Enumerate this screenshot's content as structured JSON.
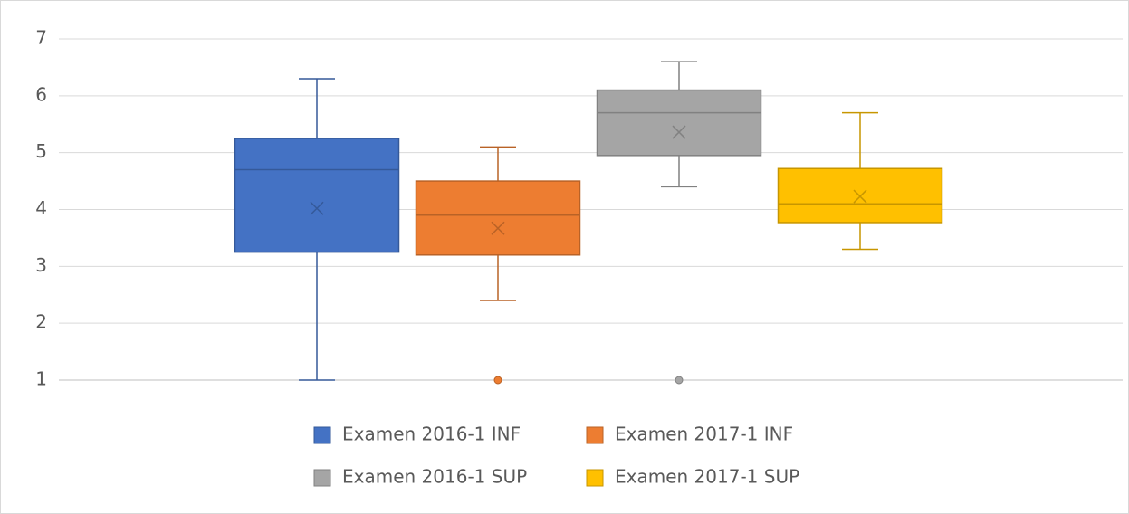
{
  "chart_data": {
    "type": "box",
    "ylim": [
      1,
      7
    ],
    "yticks": [
      1,
      2,
      3,
      4,
      5,
      6,
      7
    ],
    "grid": true,
    "series": [
      {
        "name": "Examen 2016-1 INF",
        "color": "#4472c4",
        "min": 1,
        "q1": 3.25,
        "median": 4.7,
        "q3": 5.25,
        "max": 6.3,
        "mean": 4.02,
        "outliers": []
      },
      {
        "name": "Examen 2017-1 INF",
        "color": "#ed7d31",
        "min": 2.4,
        "q1": 3.2,
        "median": 3.9,
        "q3": 4.5,
        "max": 5.1,
        "mean": 3.67,
        "outliers": [
          1
        ]
      },
      {
        "name": "Examen 2016-1 SUP",
        "color": "#a5a5a5",
        "min": 4.4,
        "q1": 4.95,
        "median": 5.7,
        "q3": 6.1,
        "max": 6.6,
        "mean": 5.36,
        "outliers": [
          1
        ]
      },
      {
        "name": "Examen 2017-1 SUP",
        "color": "#ffc000",
        "min": 3.3,
        "q1": 3.77,
        "median": 4.1,
        "q3": 4.72,
        "max": 5.7,
        "mean": 4.23,
        "outliers": []
      }
    ]
  }
}
